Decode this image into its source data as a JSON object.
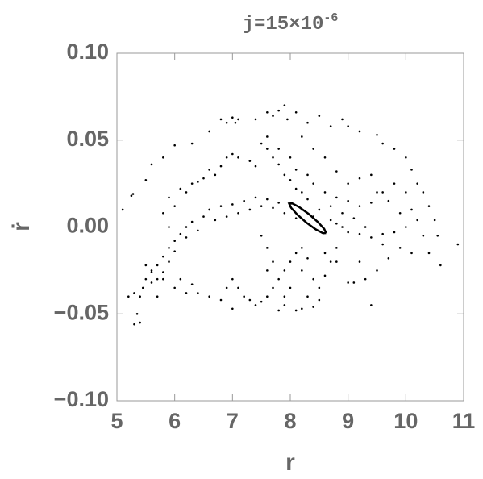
{
  "chart_data": {
    "type": "scatter",
    "title": "j=15×10",
    "title_exponent": "-6",
    "x_label": "r",
    "y_label": "ṙ",
    "xlim": [
      5,
      11
    ],
    "ylim": [
      -0.1,
      0.1
    ],
    "xticks": [
      5,
      6,
      7,
      8,
      9,
      10,
      11
    ],
    "yticks": [
      {
        "value": -0.1,
        "label": "−0.10"
      },
      {
        "value": -0.05,
        "label": "−0.05"
      },
      {
        "value": 0,
        "label": "0.00"
      },
      {
        "value": 0.05,
        "label": "0.05"
      },
      {
        "value": 0.1,
        "label": "0.10"
      }
    ],
    "series": [
      {
        "color": "#000000",
        "mode": "points",
        "x": [
          5.25,
          5.28,
          5.5,
          5.6,
          5.8,
          6.0,
          6.3,
          6.6,
          6.8,
          6.9,
          7.0,
          7.05,
          7.1,
          7.4,
          7.6,
          7.7,
          7.8,
          7.9,
          7.95,
          8.1,
          8.3,
          8.5,
          8.7,
          8.9,
          9.0,
          9.2,
          9.5,
          9.6,
          9.8,
          10.0,
          10.1,
          10.2,
          10.3,
          10.4,
          10.5,
          10.55,
          10.6,
          10.9,
          5.1,
          5.9,
          6.1,
          6.3,
          6.5,
          6.7,
          6.8,
          6.9,
          7.0,
          7.1,
          6.6,
          6.4,
          6.2,
          6.0,
          5.8,
          5.9,
          8.4,
          8.2,
          8.0,
          7.8,
          7.6,
          7.4,
          7.2,
          7.0,
          6.8,
          6.6,
          6.5,
          6.3,
          6.2,
          6.1,
          6.0,
          5.9,
          5.8,
          5.7,
          5.6,
          5.5,
          5.45,
          5.4,
          5.35,
          5.3,
          5.4,
          7.3,
          7.1,
          6.9,
          6.7,
          7.5,
          7.7,
          7.9,
          8.1,
          6.4,
          6.2,
          6.0,
          5.9,
          5.8,
          5.7,
          5.5,
          5.6,
          5.8,
          6.0,
          6.2,
          6.4,
          6.6,
          6.8,
          7.0,
          5.3,
          5.2,
          6.1,
          5.6,
          5.7,
          6.3,
          7.3,
          7.4,
          7.5,
          7.6,
          7.7,
          7.8,
          7.9,
          8.0,
          8.1,
          8.2,
          8.3,
          8.4,
          8.5,
          8.6,
          8.7,
          8.8,
          7.6,
          7.5,
          7.6,
          7.7,
          7.8,
          7.9,
          8.1,
          8.2,
          8.4,
          8.5,
          7.2,
          7.0,
          7.1,
          6.9,
          7.9,
          8.0,
          8.2,
          8.3,
          8.6,
          7.5,
          7.6,
          7.7,
          7.8,
          7.9,
          8.0,
          8.1,
          8.2,
          8.3,
          8.5,
          8.7,
          8.8,
          8.9,
          9.0,
          9.2,
          9.4,
          9.6,
          9.8,
          10.0,
          10.2,
          7.6,
          7.8,
          8.0,
          8.1,
          8.3,
          8.4,
          8.6,
          8.8,
          9.0,
          9.2,
          9.4,
          9.6,
          9.8,
          10.0,
          10.1,
          7.3,
          7.4,
          8.2,
          8.4,
          8.6,
          8.8,
          9.0,
          9.2,
          9.4,
          9.5,
          9.7,
          9.9,
          10.3,
          9.3,
          9.1,
          8.9,
          8.7,
          8.8,
          9.0,
          9.1,
          9.3,
          9.5,
          9.7,
          9.9,
          10.1,
          9.4,
          9.2,
          9.6,
          10.4
        ],
        "values": [
          0.018,
          0.019,
          0.027,
          0.036,
          0.04,
          0.047,
          0.048,
          0.055,
          0.062,
          0.06,
          0.063,
          0.06,
          0.062,
          0.062,
          0.066,
          0.064,
          0.067,
          0.07,
          0.062,
          0.066,
          0.06,
          0.064,
          0.058,
          0.062,
          0.058,
          0.055,
          0.053,
          0.048,
          0.045,
          0.04,
          0.033,
          0.025,
          0.02,
          0.012,
          0.004,
          -0.005,
          -0.022,
          -0.01,
          0.01,
          0.017,
          0.022,
          0.025,
          0.028,
          0.03,
          0.035,
          0.04,
          0.042,
          0.04,
          0.033,
          0.026,
          0.02,
          0.012,
          0.008,
          0.0,
          0.006,
          0.01,
          0.012,
          0.014,
          0.016,
          0.017,
          0.015,
          0.013,
          0.012,
          0.01,
          0.006,
          0.003,
          0.0,
          -0.004,
          -0.008,
          -0.012,
          -0.017,
          -0.022,
          -0.026,
          -0.03,
          -0.035,
          -0.04,
          -0.05,
          -0.056,
          -0.055,
          0.01,
          0.008,
          0.006,
          0.004,
          0.012,
          0.011,
          0.008,
          0.005,
          -0.002,
          -0.006,
          -0.014,
          -0.02,
          -0.026,
          -0.03,
          -0.022,
          -0.025,
          -0.03,
          -0.035,
          -0.038,
          -0.038,
          -0.04,
          -0.042,
          -0.047,
          -0.038,
          -0.04,
          -0.03,
          -0.032,
          -0.04,
          -0.033,
          -0.042,
          -0.045,
          -0.043,
          -0.04,
          -0.035,
          -0.03,
          -0.025,
          -0.02,
          -0.015,
          -0.012,
          -0.018,
          -0.03,
          -0.035,
          -0.028,
          -0.02,
          -0.012,
          -0.012,
          -0.005,
          -0.025,
          -0.02,
          -0.048,
          -0.045,
          -0.048,
          -0.047,
          -0.046,
          -0.042,
          -0.04,
          -0.03,
          -0.035,
          -0.035,
          -0.04,
          -0.035,
          -0.025,
          -0.04,
          -0.015,
          0.048,
          0.045,
          0.04,
          0.036,
          0.03,
          0.027,
          0.022,
          0.02,
          0.016,
          0.01,
          0.004,
          0.002,
          0.0,
          -0.003,
          -0.004,
          -0.006,
          -0.004,
          -0.003,
          0.0,
          0.004,
          0.052,
          0.045,
          0.04,
          0.033,
          0.03,
          0.025,
          0.02,
          0.017,
          0.015,
          0.012,
          0.014,
          0.02,
          0.025,
          0.02,
          0.01,
          0.038,
          0.035,
          0.052,
          0.045,
          0.04,
          0.032,
          0.025,
          0.028,
          0.03,
          0.02,
          0.015,
          0.008,
          -0.005,
          0.0,
          0.005,
          0.008,
          0.012,
          -0.02,
          -0.032,
          -0.032,
          -0.03,
          -0.025,
          -0.018,
          -0.012,
          -0.015,
          -0.045,
          -0.02,
          -0.01,
          -0.015
        ]
      },
      {
        "color": "#000000",
        "mode": "line",
        "x": [
          8.62,
          8.587,
          8.477,
          8.32,
          8.157,
          8.033,
          7.98,
          8.013,
          8.123,
          8.28,
          8.443,
          8.567,
          8.62
        ],
        "values": [
          -0.0035,
          -0.0011,
          0.0029,
          0.0075,
          0.0114,
          0.0136,
          0.0135,
          0.0111,
          0.0071,
          0.0025,
          -0.0014,
          -0.0036,
          -0.0035
        ]
      }
    ]
  }
}
